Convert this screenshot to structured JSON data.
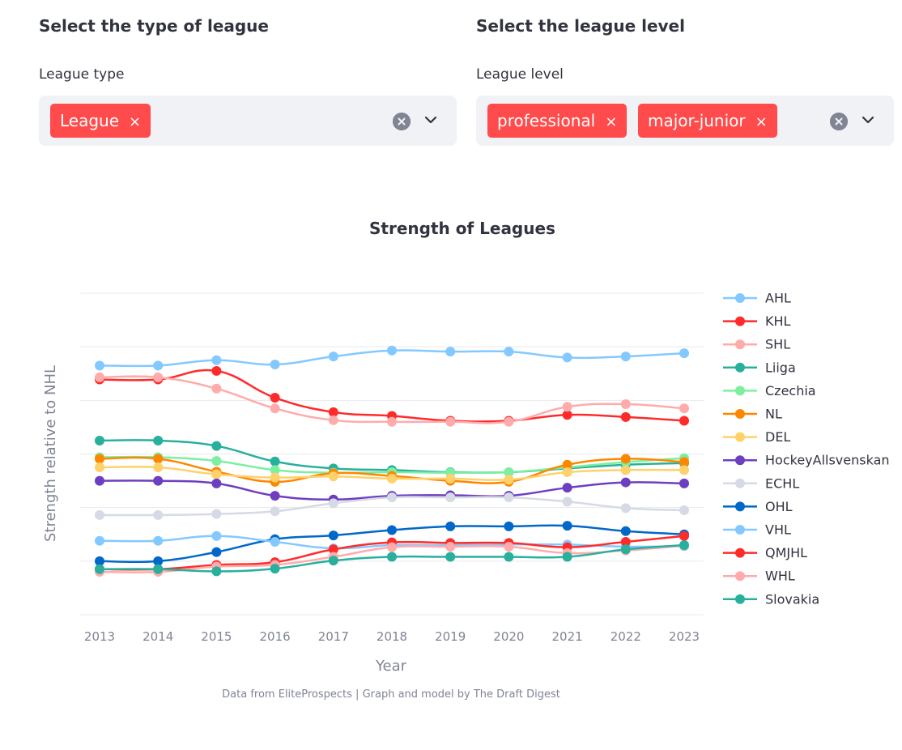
{
  "filters": {
    "league_type": {
      "heading": "Select the type of league",
      "label": "League type",
      "tags": [
        "League"
      ],
      "remove_glyph": "×"
    },
    "league_level": {
      "heading": "Select the league level",
      "label": "League level",
      "tags": [
        "professional",
        "major-junior"
      ],
      "remove_glyph": "×"
    },
    "icons": [
      "close-circle-icon",
      "chevron-down-icon",
      "remove-tag-icon"
    ],
    "accent_color": "#ff4b4b"
  },
  "chart_data": {
    "type": "line",
    "title": "Strength of Leagues",
    "xlabel": "Year",
    "ylabel": "Strength relative to NHL",
    "caption": "Data from EliteProspects | Graph and model by The Draft Digest",
    "legend_placement": "right",
    "grid": true,
    "x": [
      2013,
      2014,
      2015,
      2016,
      2017,
      2018,
      2019,
      2020,
      2021,
      2022,
      2023
    ],
    "ylim": [
      0.0,
      0.6
    ],
    "series": [
      {
        "name": "AHL",
        "color": "#83c9ff",
        "values": [
          0.465,
          0.465,
          0.475,
          0.467,
          0.482,
          0.493,
          0.491,
          0.491,
          0.48,
          0.482,
          0.488
        ]
      },
      {
        "name": "KHL",
        "color": "#ff2b2b",
        "values": [
          0.439,
          0.439,
          0.455,
          0.405,
          0.378,
          0.371,
          0.362,
          0.362,
          0.373,
          0.369,
          0.362
        ]
      },
      {
        "name": "SHL",
        "color": "#ffabab",
        "values": [
          0.443,
          0.443,
          0.422,
          0.385,
          0.363,
          0.36,
          0.36,
          0.36,
          0.388,
          0.393,
          0.385
        ]
      },
      {
        "name": "Liiga",
        "color": "#29b09d",
        "values": [
          0.325,
          0.325,
          0.315,
          0.286,
          0.273,
          0.27,
          0.266,
          0.266,
          0.273,
          0.28,
          0.283
        ]
      },
      {
        "name": "Czechia",
        "color": "#7defa1",
        "values": [
          0.294,
          0.294,
          0.287,
          0.27,
          0.265,
          0.266,
          0.265,
          0.266,
          0.275,
          0.285,
          0.292
        ]
      },
      {
        "name": "NL",
        "color": "#ff8700",
        "values": [
          0.291,
          0.291,
          0.267,
          0.248,
          0.264,
          0.259,
          0.25,
          0.248,
          0.28,
          0.291,
          0.285
        ]
      },
      {
        "name": "DEL",
        "color": "#ffd16a",
        "values": [
          0.275,
          0.275,
          0.262,
          0.256,
          0.258,
          0.254,
          0.254,
          0.252,
          0.266,
          0.27,
          0.27
        ]
      },
      {
        "name": "HockeyAllsvenskan",
        "color": "#6d3fc0",
        "values": [
          0.25,
          0.25,
          0.245,
          0.222,
          0.215,
          0.222,
          0.223,
          0.222,
          0.237,
          0.247,
          0.245
        ]
      },
      {
        "name": "ECHL",
        "color": "#d5dae5",
        "values": [
          0.186,
          0.186,
          0.188,
          0.193,
          0.208,
          0.219,
          0.219,
          0.219,
          0.211,
          0.199,
          0.195
        ]
      },
      {
        "name": "OHL",
        "color": "#0068c9",
        "values": [
          0.1,
          0.1,
          0.117,
          0.141,
          0.148,
          0.158,
          0.165,
          0.165,
          0.166,
          0.156,
          0.15
        ]
      },
      {
        "name": "VHL",
        "color": "#83c9ff",
        "values": [
          0.138,
          0.138,
          0.147,
          0.136,
          0.124,
          0.13,
          0.13,
          0.131,
          0.131,
          0.127,
          0.128
        ]
      },
      {
        "name": "QMJHL",
        "color": "#ff2b2b",
        "values": [
          0.085,
          0.085,
          0.093,
          0.098,
          0.122,
          0.135,
          0.134,
          0.134,
          0.126,
          0.136,
          0.147
        ]
      },
      {
        "name": "WHL",
        "color": "#ffabab",
        "values": [
          0.08,
          0.08,
          0.09,
          0.093,
          0.108,
          0.126,
          0.127,
          0.127,
          0.115,
          0.12,
          0.129
        ]
      },
      {
        "name": "Slovakia",
        "color": "#29b09d",
        "values": [
          0.085,
          0.085,
          0.081,
          0.086,
          0.101,
          0.108,
          0.108,
          0.108,
          0.108,
          0.122,
          0.13
        ]
      }
    ]
  }
}
